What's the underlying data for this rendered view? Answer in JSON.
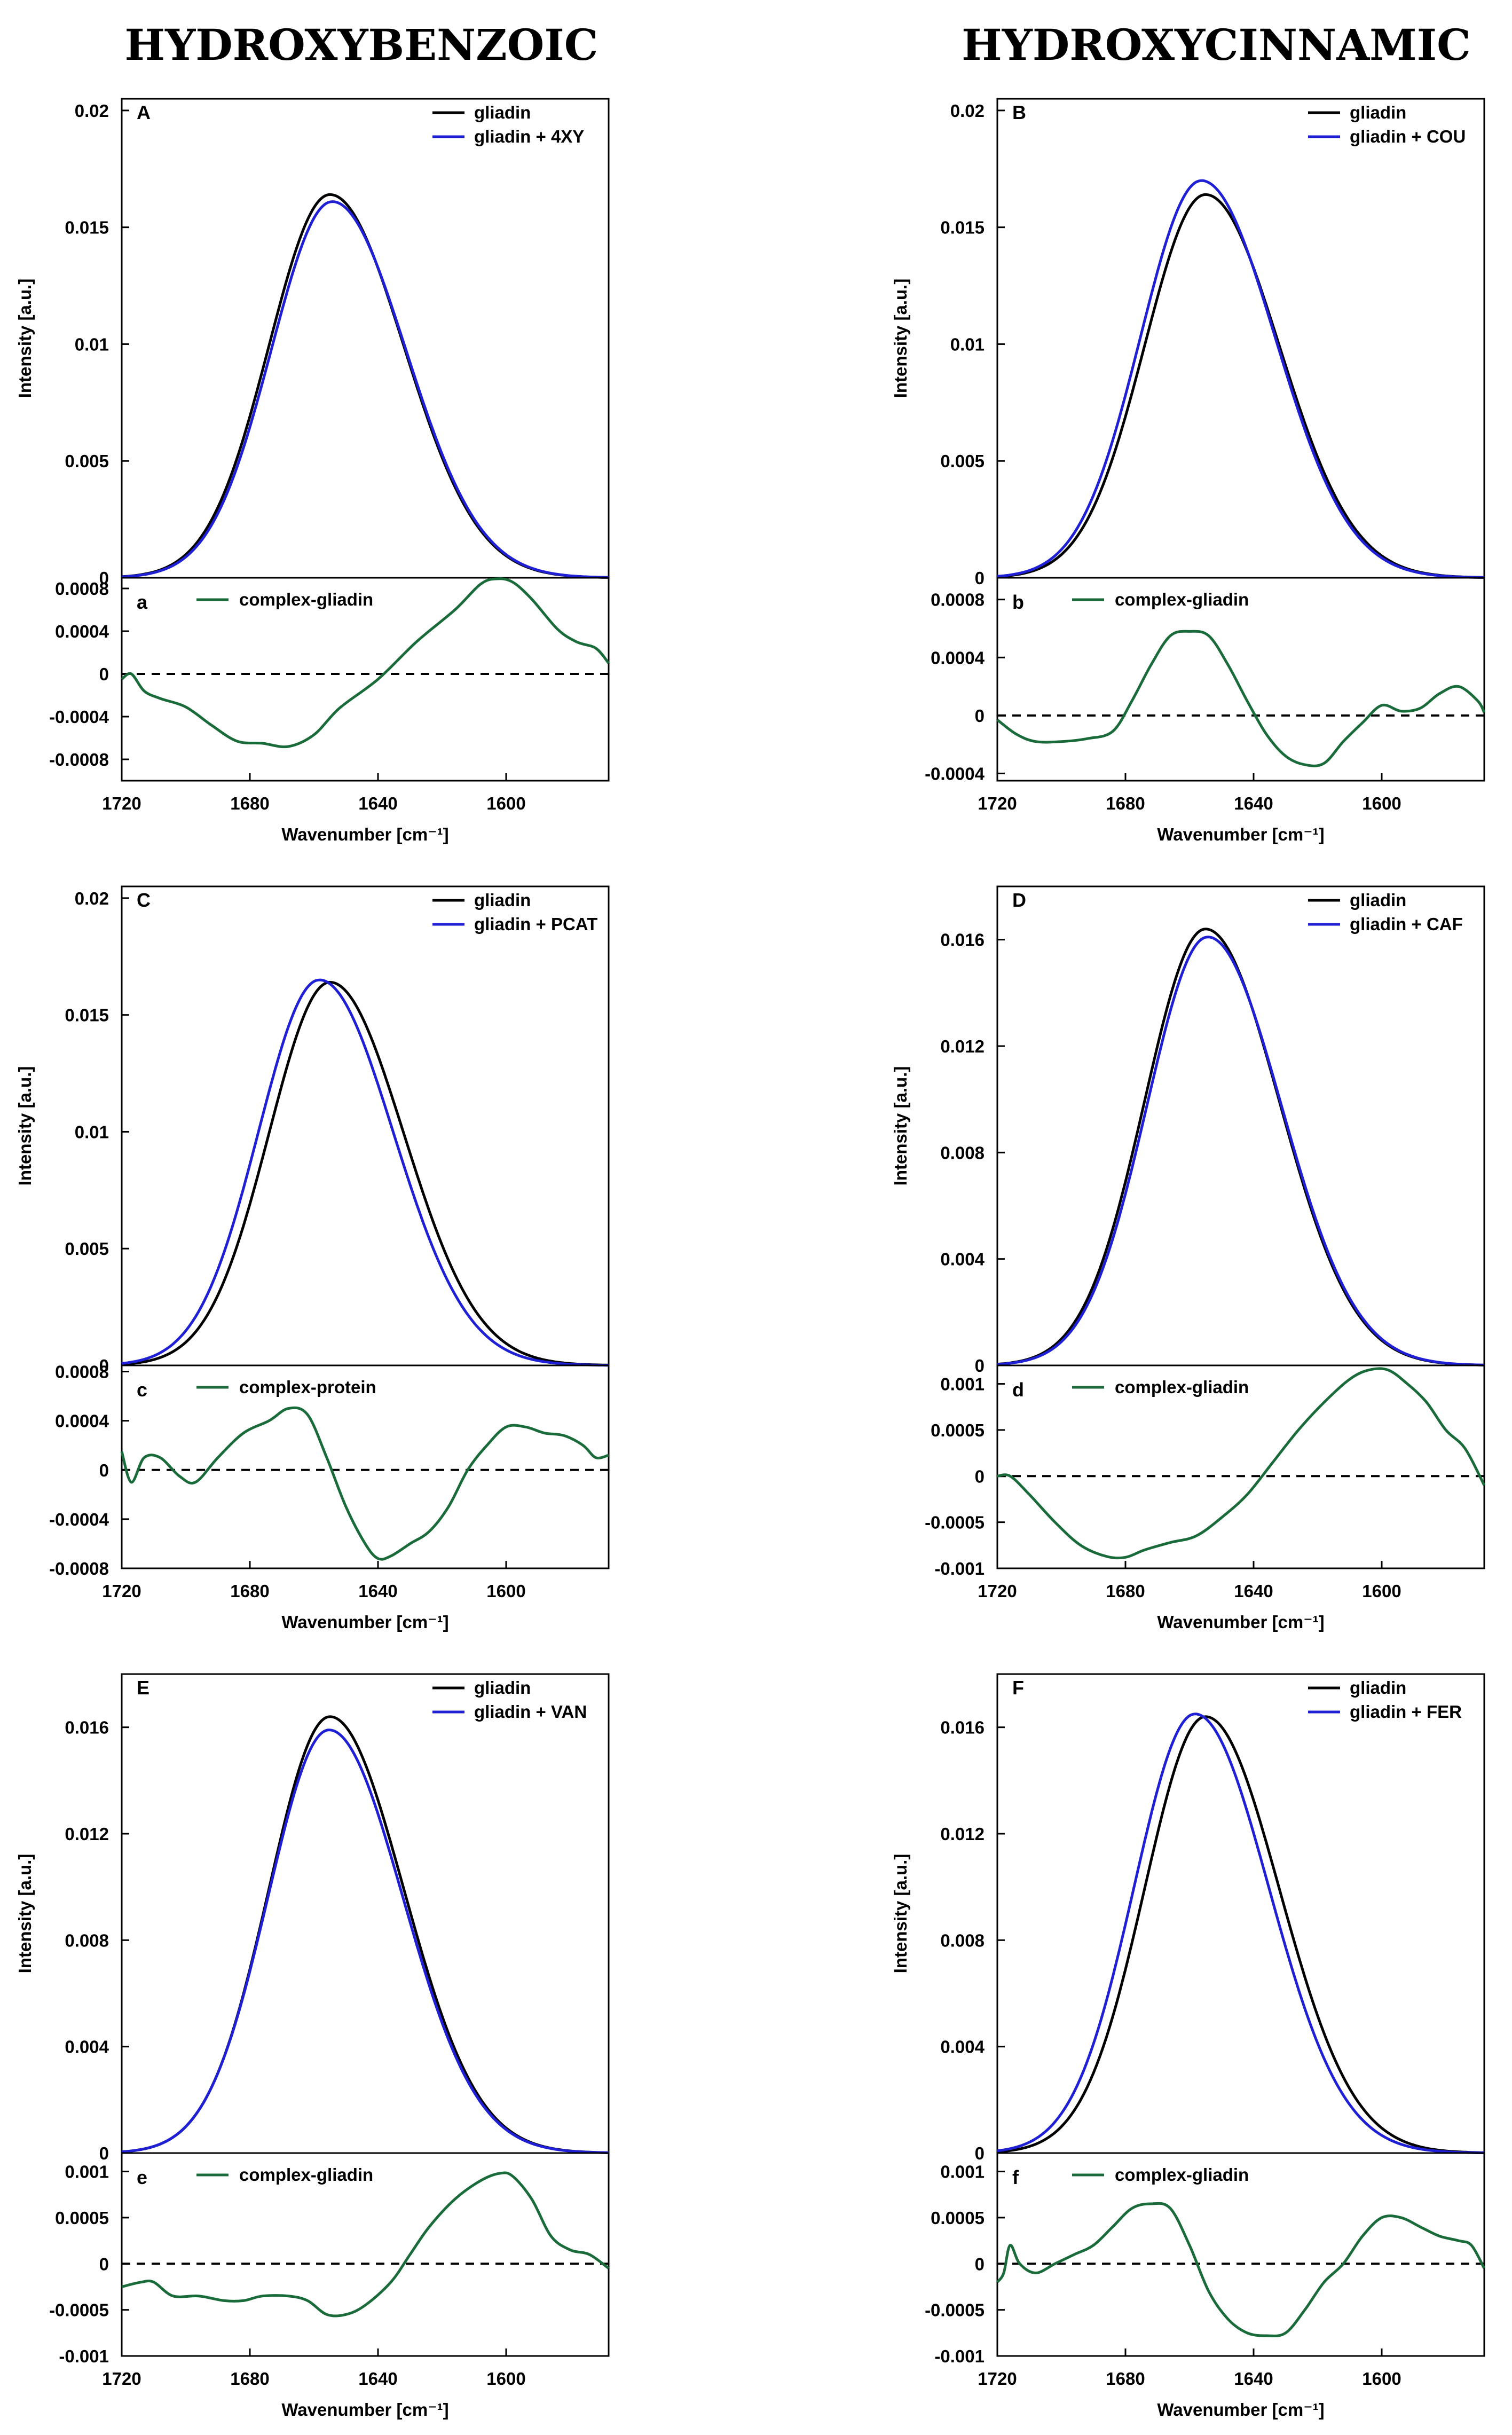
{
  "columns": [
    "HYDROXYBENZOIC",
    "HYDROXYCINNAMIC"
  ],
  "colors": {
    "gliadin": "#000000",
    "complex": "#1f1fd6",
    "diff": "#1a6b3a",
    "zero": "#000000"
  },
  "chart_data": [
    {
      "type": "line",
      "column": 0,
      "row": 0,
      "title": "A",
      "xlabel": "Wavenumber [cm⁻¹]",
      "ylabel": "Intensity [a.u.]",
      "xlim": [
        1720,
        1568
      ],
      "xticks": [
        1720,
        1680,
        1640,
        1600
      ],
      "top": {
        "label": "A",
        "ylim": [
          0,
          0.0205
        ],
        "yticks": [
          0,
          0.005,
          0.01,
          0.015,
          0.02
        ],
        "ytick_labels": [
          "0",
          "0.005",
          "0.01",
          "0.015",
          "0.02"
        ],
        "gliadin_peak": 0.0164,
        "complex_peak": 0.0161,
        "series": [
          {
            "name": "gliadin",
            "peak_x": 1655
          },
          {
            "name": "gliadin + 4XY",
            "peak_x": 1654
          }
        ]
      },
      "bottom": {
        "label": "a",
        "name": "complex-gliadin",
        "ylim": [
          -0.001,
          0.0009
        ],
        "yticks": [
          -0.0008,
          -0.0004,
          0,
          0.0004,
          0.0008
        ],
        "ytick_labels": [
          "-0.0008",
          "-0.0004",
          "0",
          "0.0004",
          "0.0008"
        ],
        "x": [
          1720,
          1717,
          1713,
          1708,
          1700,
          1692,
          1684,
          1676,
          1668,
          1660,
          1652,
          1640,
          1628,
          1616,
          1608,
          1603,
          1598,
          1592,
          1584,
          1578,
          1572,
          1568
        ],
        "y": [
          -5e-05,
          0.0,
          -0.00016,
          -0.00023,
          -0.00031,
          -0.00048,
          -0.00063,
          -0.00065,
          -0.00068,
          -0.00057,
          -0.00032,
          -5e-05,
          0.0003,
          0.0006,
          0.00084,
          0.00089,
          0.00086,
          0.0007,
          0.00042,
          0.0003,
          0.00024,
          0.0001
        ]
      }
    },
    {
      "type": "line",
      "column": 1,
      "row": 0,
      "title": "B",
      "xlabel": "Wavenumber [cm⁻¹]",
      "ylabel": "Intensity [a.u.]",
      "xlim": [
        1720,
        1568
      ],
      "xticks": [
        1720,
        1680,
        1640,
        1600
      ],
      "top": {
        "label": "B",
        "ylim": [
          0,
          0.0205
        ],
        "yticks": [
          0,
          0.005,
          0.01,
          0.015,
          0.02
        ],
        "ytick_labels": [
          "0",
          "0.005",
          "0.01",
          "0.015",
          "0.02"
        ],
        "gliadin_peak": 0.0164,
        "complex_peak": 0.017,
        "series": [
          {
            "name": "gliadin",
            "peak_x": 1655
          },
          {
            "name": "gliadin + COU",
            "peak_x": 1656
          }
        ]
      },
      "bottom": {
        "label": "b",
        "name": "complex-gliadin",
        "ylim": [
          -0.00045,
          0.00095
        ],
        "yticks": [
          -0.0004,
          0,
          0.0004,
          0.0008
        ],
        "ytick_labels": [
          "-0.0004",
          "0",
          "0.0004",
          "0.0008"
        ],
        "x": [
          1720,
          1714,
          1708,
          1700,
          1692,
          1684,
          1678,
          1672,
          1666,
          1660,
          1654,
          1648,
          1642,
          1636,
          1630,
          1624,
          1618,
          1612,
          1606,
          1600,
          1594,
          1588,
          1582,
          1576,
          1570,
          1568
        ],
        "y": [
          -3e-05,
          -0.00013,
          -0.00018,
          -0.00018,
          -0.00016,
          -0.00011,
          0.0001,
          0.00035,
          0.00055,
          0.00058,
          0.00055,
          0.00035,
          0.0001,
          -0.00013,
          -0.00028,
          -0.00034,
          -0.00033,
          -0.00018,
          -5e-05,
          7e-05,
          3e-05,
          5e-05,
          0.00015,
          0.0002,
          0.0001,
          2e-05
        ]
      }
    },
    {
      "type": "line",
      "column": 0,
      "row": 1,
      "title": "C",
      "xlabel": "Wavenumber [cm⁻¹]",
      "ylabel": "Intensity [a.u.]",
      "xlim": [
        1720,
        1568
      ],
      "xticks": [
        1720,
        1680,
        1640,
        1600
      ],
      "top": {
        "label": "C",
        "ylim": [
          0,
          0.0205
        ],
        "yticks": [
          0,
          0.005,
          0.01,
          0.015,
          0.02
        ],
        "ytick_labels": [
          "0",
          "0.005",
          "0.01",
          "0.015",
          "0.02"
        ],
        "gliadin_peak": 0.0164,
        "complex_peak": 0.0165,
        "series": [
          {
            "name": "gliadin",
            "peak_x": 1655
          },
          {
            "name": "gliadin + PCAT",
            "peak_x": 1658
          }
        ]
      },
      "bottom": {
        "label": "c",
        "name": "complex-protein",
        "ylim": [
          -0.0008,
          0.00085
        ],
        "yticks": [
          -0.0008,
          -0.0004,
          0,
          0.0004,
          0.0008
        ],
        "ytick_labels": [
          "-0.0008",
          "-0.0004",
          "0",
          "0.0004",
          "0.0008"
        ],
        "x": [
          1720,
          1717,
          1713,
          1708,
          1702,
          1697,
          1690,
          1682,
          1674,
          1668,
          1662,
          1656,
          1650,
          1644,
          1640,
          1636,
          1630,
          1624,
          1618,
          1612,
          1606,
          1600,
          1594,
          1588,
          1582,
          1576,
          1572,
          1568
        ],
        "y": [
          0.00015,
          -0.0001,
          0.0001,
          0.0001,
          -5e-05,
          -0.0001,
          0.0001,
          0.0003,
          0.0004,
          0.0005,
          0.00045,
          0.0001,
          -0.0003,
          -0.0006,
          -0.00072,
          -0.0007,
          -0.0006,
          -0.0005,
          -0.0003,
          0.0,
          0.0002,
          0.00035,
          0.00035,
          0.0003,
          0.00028,
          0.0002,
          0.0001,
          0.00012
        ]
      }
    },
    {
      "type": "line",
      "column": 1,
      "row": 1,
      "title": "D",
      "xlabel": "Wavenumber [cm⁻¹]",
      "ylabel": "Intensity [a.u.]",
      "xlim": [
        1720,
        1568
      ],
      "xticks": [
        1720,
        1680,
        1640,
        1600
      ],
      "top": {
        "label": "D",
        "ylim": [
          0,
          0.018
        ],
        "yticks": [
          0,
          0.004,
          0.008,
          0.012,
          0.016
        ],
        "ytick_labels": [
          "0",
          "0.004",
          "0.008",
          "0.012",
          "0.016"
        ],
        "gliadin_peak": 0.0164,
        "complex_peak": 0.0161,
        "series": [
          {
            "name": "gliadin",
            "peak_x": 1655
          },
          {
            "name": "gliadin + CAF",
            "peak_x": 1654
          }
        ]
      },
      "bottom": {
        "label": "d",
        "name": "complex-gliadin",
        "ylim": [
          -0.001,
          0.0012
        ],
        "yticks": [
          -0.001,
          -0.0005,
          0,
          0.0005,
          0.001
        ],
        "ytick_labels": [
          "-0.001",
          "-0.0005",
          "0",
          "0.0005",
          "0.001"
        ],
        "x": [
          1720,
          1716,
          1710,
          1702,
          1694,
          1686,
          1680,
          1674,
          1666,
          1658,
          1650,
          1642,
          1634,
          1626,
          1618,
          1610,
          1604,
          1598,
          1592,
          1586,
          1580,
          1574,
          1568
        ],
        "y": [
          0.0,
          0.0,
          -0.0002,
          -0.0005,
          -0.00075,
          -0.00087,
          -0.00088,
          -0.0008,
          -0.00072,
          -0.00065,
          -0.00045,
          -0.0002,
          0.00015,
          0.0005,
          0.0008,
          0.00105,
          0.00115,
          0.00115,
          0.001,
          0.0008,
          0.0005,
          0.0003,
          -0.0001
        ]
      }
    },
    {
      "type": "line",
      "column": 0,
      "row": 2,
      "title": "E",
      "xlabel": "Wavenumber [cm⁻¹]",
      "ylabel": "Intensity [a.u.]",
      "xlim": [
        1720,
        1568
      ],
      "xticks": [
        1720,
        1680,
        1640,
        1600
      ],
      "top": {
        "label": "E",
        "ylim": [
          0,
          0.018
        ],
        "yticks": [
          0,
          0.004,
          0.008,
          0.012,
          0.016
        ],
        "ytick_labels": [
          "0",
          "0.004",
          "0.008",
          "0.012",
          "0.016"
        ],
        "gliadin_peak": 0.0164,
        "complex_peak": 0.0159,
        "series": [
          {
            "name": "gliadin",
            "peak_x": 1655
          },
          {
            "name": "gliadin + VAN",
            "peak_x": 1655
          }
        ]
      },
      "bottom": {
        "label": "e",
        "name": "complex-gliadin",
        "ylim": [
          -0.001,
          0.0012
        ],
        "yticks": [
          -0.001,
          -0.0005,
          0,
          0.0005,
          0.001
        ],
        "ytick_labels": [
          "-0.001",
          "-0.0005",
          "0",
          "0.0005",
          "0.001"
        ],
        "x": [
          1720,
          1714,
          1710,
          1704,
          1696,
          1688,
          1682,
          1676,
          1668,
          1662,
          1656,
          1650,
          1644,
          1636,
          1630,
          1624,
          1616,
          1608,
          1602,
          1598,
          1592,
          1586,
          1580,
          1574,
          1568
        ],
        "y": [
          -0.00025,
          -0.0002,
          -0.0002,
          -0.00035,
          -0.00035,
          -0.0004,
          -0.0004,
          -0.00035,
          -0.00035,
          -0.0004,
          -0.00055,
          -0.00055,
          -0.00045,
          -0.0002,
          0.0001,
          0.0004,
          0.0007,
          0.0009,
          0.00098,
          0.00095,
          0.0007,
          0.0003,
          0.00015,
          0.0001,
          -5e-05
        ]
      }
    },
    {
      "type": "line",
      "column": 1,
      "row": 2,
      "title": "F",
      "xlabel": "Wavenumber [cm⁻¹]",
      "ylabel": "Intensity [a.u.]",
      "xlim": [
        1720,
        1568
      ],
      "xticks": [
        1720,
        1680,
        1640,
        1600
      ],
      "top": {
        "label": "F",
        "ylim": [
          0,
          0.018
        ],
        "yticks": [
          0,
          0.004,
          0.008,
          0.012,
          0.016
        ],
        "ytick_labels": [
          "0",
          "0.004",
          "0.008",
          "0.012",
          "0.016"
        ],
        "gliadin_peak": 0.0164,
        "complex_peak": 0.0165,
        "series": [
          {
            "name": "gliadin",
            "peak_x": 1655
          },
          {
            "name": "gliadin + FER",
            "peak_x": 1658
          }
        ]
      },
      "bottom": {
        "label": "f",
        "name": "complex-gliadin",
        "ylim": [
          -0.001,
          0.0012
        ],
        "yticks": [
          -0.001,
          -0.0005,
          0,
          0.0005,
          0.001
        ],
        "ytick_labels": [
          "-0.001",
          "-0.0005",
          "0",
          "0.0005",
          "0.001"
        ],
        "x": [
          1720,
          1718,
          1716,
          1713,
          1708,
          1702,
          1696,
          1690,
          1684,
          1678,
          1672,
          1666,
          1660,
          1654,
          1648,
          1642,
          1636,
          1630,
          1624,
          1618,
          1612,
          1606,
          1600,
          1594,
          1588,
          1582,
          1576,
          1572,
          1568
        ],
        "y": [
          -0.0002,
          -0.0001,
          0.0002,
          0.0,
          -0.0001,
          0.0,
          0.0001,
          0.0002,
          0.0004,
          0.0006,
          0.00065,
          0.0006,
          0.0002,
          -0.0003,
          -0.0006,
          -0.00075,
          -0.00078,
          -0.00075,
          -0.0005,
          -0.0002,
          0.0,
          0.0003,
          0.0005,
          0.0005,
          0.0004,
          0.0003,
          0.00025,
          0.0002,
          -5e-05
        ]
      }
    }
  ]
}
